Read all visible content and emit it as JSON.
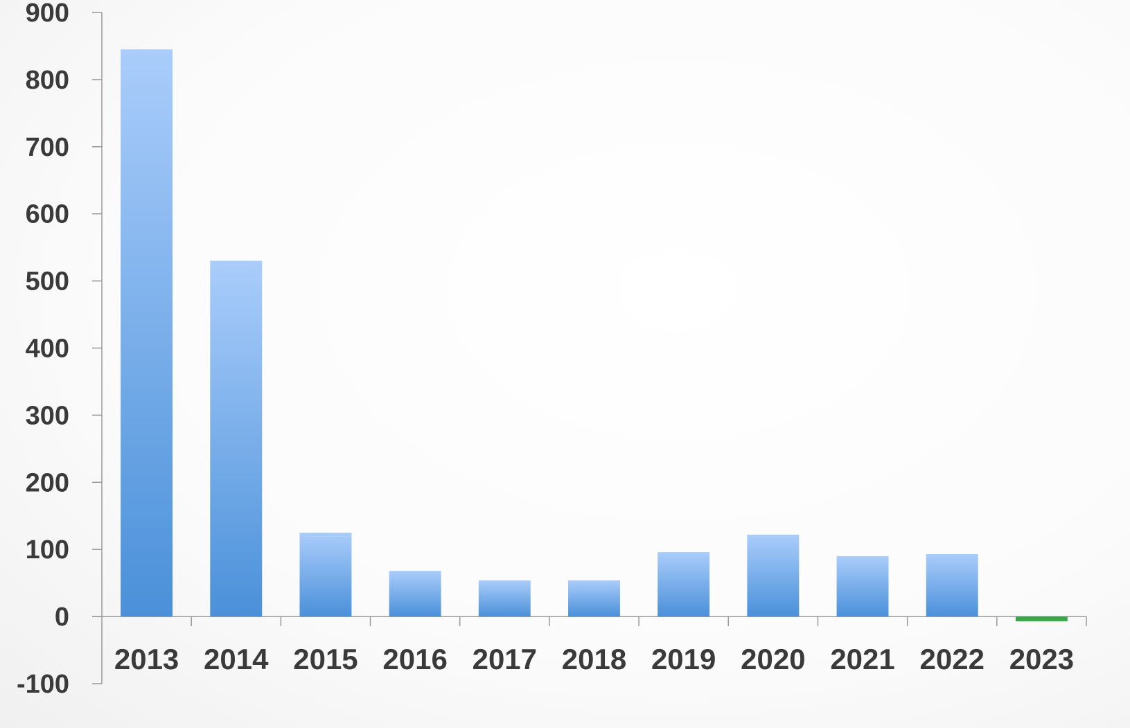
{
  "chart_data": {
    "type": "bar",
    "categories": [
      "2013",
      "2014",
      "2015",
      "2016",
      "2017",
      "2018",
      "2019",
      "2020",
      "2021",
      "2022",
      "2023"
    ],
    "values": [
      845,
      530,
      125,
      68,
      54,
      54,
      96,
      122,
      90,
      93,
      -7
    ],
    "ylim": [
      -100,
      900
    ],
    "yticks": [
      "-100",
      "0",
      "100",
      "200",
      "300",
      "400",
      "500",
      "600",
      "700",
      "800",
      "900"
    ],
    "grid": false,
    "legend": "none",
    "colors": {
      "positive_top": "#aacdfb",
      "positive_bottom": "#4a90d9",
      "negative": "#3aa64a",
      "axis": "#999999",
      "text": "#3a3a3a"
    }
  }
}
